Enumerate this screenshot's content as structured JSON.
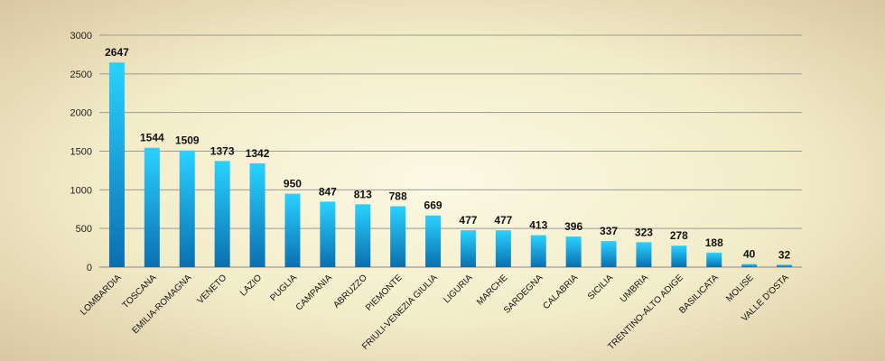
{
  "chart_data": {
    "type": "bar",
    "title": "",
    "xlabel": "",
    "ylabel": "",
    "ylim": [
      0,
      3000
    ],
    "yticks": [
      0,
      500,
      1000,
      1500,
      2000,
      2500,
      3000
    ],
    "grid": true,
    "legend": "none",
    "bar_color_top": "#29d2ff",
    "bar_color_bottom": "#0a6fb0",
    "categories": [
      "LOMBARDIA",
      "TOSCANA",
      "EMILIA-ROMAGNA",
      "VENETO",
      "LAZIO",
      "PUGLIA",
      "CAMPANIA",
      "ABRUZZO",
      "PIEMONTE",
      "FRIULI-VENEZIA GIULIA",
      "LIGURIA",
      "MARCHE",
      "SARDEGNA",
      "CALABRIA",
      "SICILIA",
      "UMBRIA",
      "TRENTINO-ALTO ADIGE",
      "BASILICATA",
      "MOLISE",
      "VALLE D'OSTA"
    ],
    "values": [
      2647,
      1544,
      1509,
      1373,
      1342,
      950,
      847,
      813,
      788,
      669,
      477,
      477,
      413,
      396,
      337,
      323,
      278,
      188,
      40,
      32
    ]
  }
}
